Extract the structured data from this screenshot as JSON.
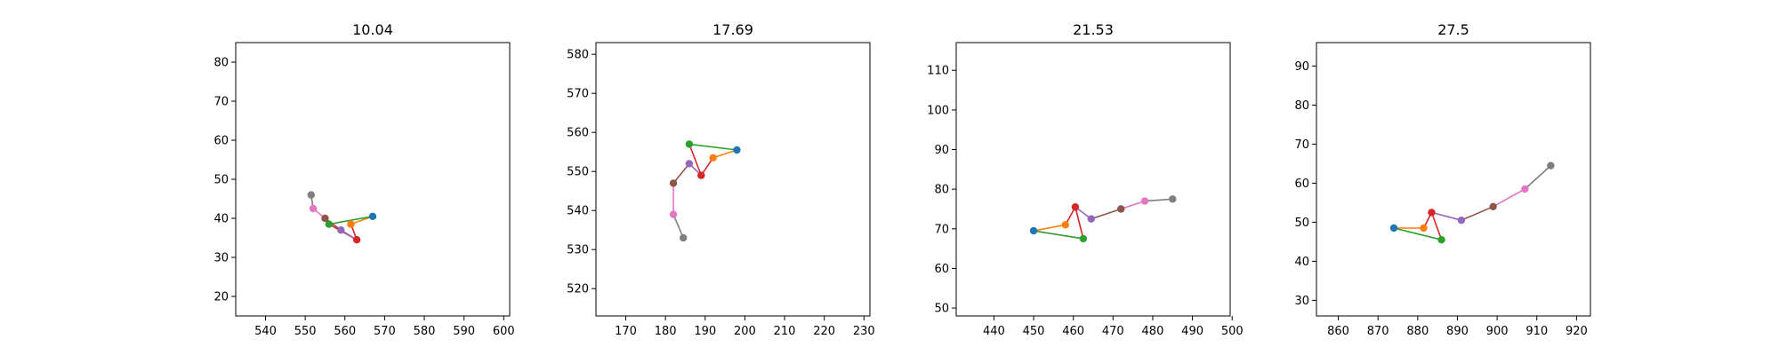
{
  "chart_data": [
    {
      "type": "scatter",
      "title": "10.04",
      "xlim": [
        532.5,
        601.5
      ],
      "ylim": [
        15,
        85
      ],
      "xticks": [
        540,
        550,
        560,
        570,
        580,
        590,
        600
      ],
      "yticks": [
        20,
        30,
        40,
        50,
        60,
        70,
        80
      ],
      "grid": false,
      "points": [
        {
          "x": 567,
          "y": 40.5,
          "color": "#1f77b4"
        },
        {
          "x": 561.5,
          "y": 38.5,
          "color": "#ff7f0e"
        },
        {
          "x": 556,
          "y": 38.5,
          "color": "#2ca02c"
        },
        {
          "x": 563,
          "y": 34.5,
          "color": "#d62728"
        },
        {
          "x": 559,
          "y": 37,
          "color": "#9467bd"
        },
        {
          "x": 555,
          "y": 40,
          "color": "#8c564b"
        },
        {
          "x": 552,
          "y": 42.5,
          "color": "#e377c2"
        },
        {
          "x": 551.5,
          "y": 46,
          "color": "#7f7f7f"
        }
      ]
    },
    {
      "type": "scatter",
      "title": "17.69",
      "xlim": [
        162.5,
        231.5
      ],
      "ylim": [
        513,
        583
      ],
      "xticks": [
        170,
        180,
        190,
        200,
        210,
        220,
        230
      ],
      "yticks": [
        520,
        530,
        540,
        550,
        560,
        570,
        580
      ],
      "grid": false,
      "points": [
        {
          "x": 198,
          "y": 555.5,
          "color": "#1f77b4"
        },
        {
          "x": 192,
          "y": 553.5,
          "color": "#ff7f0e"
        },
        {
          "x": 186,
          "y": 557,
          "color": "#2ca02c"
        },
        {
          "x": 189,
          "y": 549,
          "color": "#d62728"
        },
        {
          "x": 186,
          "y": 552,
          "color": "#9467bd"
        },
        {
          "x": 182,
          "y": 547,
          "color": "#8c564b"
        },
        {
          "x": 182,
          "y": 539,
          "color": "#e377c2"
        },
        {
          "x": 184.5,
          "y": 533,
          "color": "#7f7f7f"
        }
      ]
    },
    {
      "type": "scatter",
      "title": "21.53",
      "xlim": [
        430.5,
        499.5
      ],
      "ylim": [
        48,
        117
      ],
      "xticks": [
        440,
        450,
        460,
        470,
        480,
        490,
        500
      ],
      "yticks": [
        50,
        60,
        70,
        80,
        90,
        100,
        110
      ],
      "grid": false,
      "points": [
        {
          "x": 450,
          "y": 69.5,
          "color": "#1f77b4"
        },
        {
          "x": 458,
          "y": 71,
          "color": "#ff7f0e"
        },
        {
          "x": 462.5,
          "y": 67.5,
          "color": "#2ca02c"
        },
        {
          "x": 460.5,
          "y": 75.5,
          "color": "#d62728"
        },
        {
          "x": 464.5,
          "y": 72.5,
          "color": "#9467bd"
        },
        {
          "x": 472,
          "y": 75,
          "color": "#8c564b"
        },
        {
          "x": 478,
          "y": 77,
          "color": "#e377c2"
        },
        {
          "x": 485,
          "y": 77.5,
          "color": "#7f7f7f"
        }
      ]
    },
    {
      "type": "scatter",
      "title": "27.5",
      "xlim": [
        854.5,
        923.5
      ],
      "ylim": [
        26,
        96
      ],
      "xticks": [
        860,
        870,
        880,
        890,
        900,
        910,
        920
      ],
      "yticks": [
        30,
        40,
        50,
        60,
        70,
        80,
        90
      ],
      "grid": false,
      "points": [
        {
          "x": 874,
          "y": 48.5,
          "color": "#1f77b4"
        },
        {
          "x": 881.5,
          "y": 48.5,
          "color": "#ff7f0e"
        },
        {
          "x": 886,
          "y": 45.5,
          "color": "#2ca02c"
        },
        {
          "x": 883.5,
          "y": 52.5,
          "color": "#d62728"
        },
        {
          "x": 891,
          "y": 50.5,
          "color": "#9467bd"
        },
        {
          "x": 899,
          "y": 54,
          "color": "#8c564b"
        },
        {
          "x": 907,
          "y": 58.5,
          "color": "#e377c2"
        },
        {
          "x": 913.5,
          "y": 64.5,
          "color": "#7f7f7f"
        }
      ]
    }
  ],
  "edges": [
    {
      "from": 0,
      "to": 1,
      "color": "#ff7f0e"
    },
    {
      "from": 0,
      "to": 2,
      "color": "#2ca02c"
    },
    {
      "from": 1,
      "to": 3,
      "color": "#d62728"
    },
    {
      "from": 2,
      "to": 3,
      "color": "#d62728"
    },
    {
      "from": 3,
      "to": 4,
      "color": "#9467bd"
    },
    {
      "from": 4,
      "to": 5,
      "color": "#8c564b"
    },
    {
      "from": 5,
      "to": 6,
      "color": "#e377c2"
    },
    {
      "from": 6,
      "to": 7,
      "color": "#7f7f7f"
    }
  ]
}
